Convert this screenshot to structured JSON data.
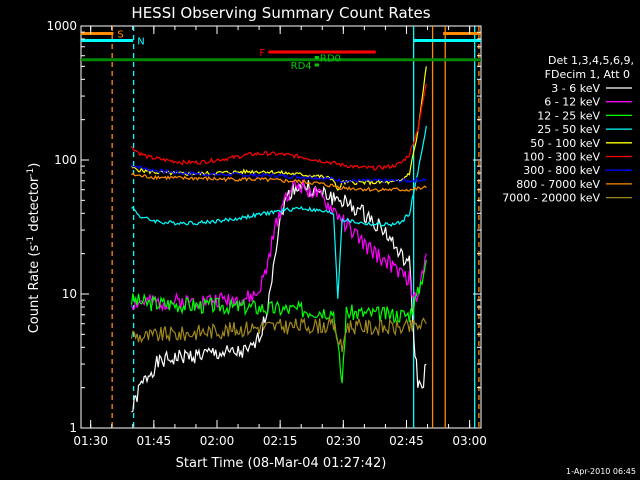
{
  "chart_data": {
    "type": "line",
    "title": "HESSI Observing Summary Count Rates",
    "xlabel": "Start Time (08-Mar-04 01:27:42)",
    "ylabel_main": "Count Rate (s",
    "ylabel_sup": "-1",
    "ylabel_tail": " detector",
    "ylabel_sup2": "-1",
    "ylabel_end": ")",
    "yscale": "log",
    "ylim": [
      1,
      1000
    ],
    "xlim_minutes": [
      0,
      95
    ],
    "x_ticks": [
      {
        "t": 2.3,
        "label": "01:30"
      },
      {
        "t": 17.3,
        "label": "01:45"
      },
      {
        "t": 32.3,
        "label": "02:00"
      },
      {
        "t": 47.3,
        "label": "02:15"
      },
      {
        "t": 62.3,
        "label": "02:30"
      },
      {
        "t": 77.3,
        "label": "02:45"
      },
      {
        "t": 92.3,
        "label": "03:00"
      }
    ],
    "y_ticks": [
      {
        "v": 1,
        "label": "1"
      },
      {
        "v": 10,
        "label": "10"
      },
      {
        "v": 100,
        "label": "100"
      },
      {
        "v": 1000,
        "label": "1000"
      }
    ],
    "legend_header": [
      "Det 1,3,4,5,6,9,",
      "FDecim 1, Att 0"
    ],
    "series": [
      {
        "name": "3 - 6 keV",
        "color": "#ffffff",
        "points": [
          [
            12,
            1.3
          ],
          [
            14,
            2
          ],
          [
            16,
            2.5
          ],
          [
            18,
            3
          ],
          [
            20,
            3.2
          ],
          [
            24,
            3.4
          ],
          [
            28,
            3.5
          ],
          [
            32,
            3.6
          ],
          [
            36,
            3.6
          ],
          [
            40,
            3.7
          ],
          [
            42,
            4.5
          ],
          [
            44,
            7
          ],
          [
            46,
            20
          ],
          [
            48,
            45
          ],
          [
            50,
            60
          ],
          [
            52,
            65
          ],
          [
            54,
            62
          ],
          [
            56,
            57
          ],
          [
            58,
            55
          ],
          [
            60,
            52
          ],
          [
            62,
            50
          ],
          [
            64,
            45
          ],
          [
            66,
            42
          ],
          [
            68,
            38
          ],
          [
            70,
            34
          ],
          [
            72,
            30
          ],
          [
            74,
            24
          ],
          [
            76,
            19
          ],
          [
            78,
            17
          ],
          [
            79,
            5
          ],
          [
            80,
            2.2
          ],
          [
            81,
            2
          ],
          [
            82,
            3
          ]
        ]
      },
      {
        "name": "6 - 12 keV",
        "color": "#ff00ff",
        "points": [
          [
            12,
            8.5
          ],
          [
            14,
            8.7
          ],
          [
            16,
            8.6
          ],
          [
            20,
            8.7
          ],
          [
            24,
            8.8
          ],
          [
            28,
            8.9
          ],
          [
            32,
            9
          ],
          [
            36,
            9.1
          ],
          [
            40,
            9.3
          ],
          [
            42,
            10
          ],
          [
            44,
            15
          ],
          [
            46,
            30
          ],
          [
            48,
            50
          ],
          [
            50,
            62
          ],
          [
            52,
            65
          ],
          [
            54,
            60
          ],
          [
            56,
            55
          ],
          [
            58,
            48
          ],
          [
            60,
            42
          ],
          [
            62,
            36
          ],
          [
            64,
            30
          ],
          [
            66,
            26
          ],
          [
            68,
            22
          ],
          [
            70,
            20
          ],
          [
            72,
            18
          ],
          [
            74,
            16
          ],
          [
            76,
            14
          ],
          [
            78,
            13
          ],
          [
            79,
            9
          ],
          [
            80,
            9.5
          ],
          [
            82,
            20
          ]
        ]
      },
      {
        "name": "12 - 25 keV",
        "color": "#00ff00",
        "points": [
          [
            12,
            9
          ],
          [
            14,
            8.8
          ],
          [
            16,
            8.5
          ],
          [
            20,
            8.5
          ],
          [
            24,
            8.3
          ],
          [
            28,
            8.2
          ],
          [
            32,
            8.2
          ],
          [
            36,
            8
          ],
          [
            40,
            8
          ],
          [
            44,
            7.8
          ],
          [
            48,
            7.7
          ],
          [
            52,
            7.6
          ],
          [
            56,
            7.5
          ],
          [
            60,
            7.4
          ],
          [
            62,
            2.2
          ],
          [
            63,
            7.3
          ],
          [
            66,
            7.2
          ],
          [
            70,
            7.1
          ],
          [
            74,
            7
          ],
          [
            78,
            7
          ],
          [
            80,
            10
          ],
          [
            82,
            18
          ]
        ]
      },
      {
        "name": "25 - 50 keV",
        "color": "#00ffff",
        "points": [
          [
            12,
            45
          ],
          [
            14,
            38
          ],
          [
            16,
            36
          ],
          [
            20,
            34
          ],
          [
            24,
            34
          ],
          [
            28,
            34
          ],
          [
            32,
            35
          ],
          [
            36,
            36
          ],
          [
            40,
            38
          ],
          [
            44,
            40
          ],
          [
            48,
            42
          ],
          [
            52,
            44
          ],
          [
            56,
            42
          ],
          [
            60,
            40
          ],
          [
            61,
            9.3
          ],
          [
            62,
            36
          ],
          [
            66,
            34
          ],
          [
            70,
            33
          ],
          [
            74,
            33
          ],
          [
            76,
            34
          ],
          [
            78,
            40
          ],
          [
            80,
            80
          ],
          [
            82,
            180
          ]
        ]
      },
      {
        "name": "50 - 100 keV",
        "color": "#ffff00",
        "points": [
          [
            12,
            88
          ],
          [
            14,
            84
          ],
          [
            16,
            82
          ],
          [
            20,
            80
          ],
          [
            24,
            79
          ],
          [
            28,
            79
          ],
          [
            32,
            80
          ],
          [
            36,
            81
          ],
          [
            40,
            82
          ],
          [
            44,
            82
          ],
          [
            48,
            80
          ],
          [
            52,
            78
          ],
          [
            56,
            76
          ],
          [
            60,
            72
          ],
          [
            61,
            58
          ],
          [
            62,
            68
          ],
          [
            66,
            68
          ],
          [
            70,
            68
          ],
          [
            74,
            68
          ],
          [
            76,
            70
          ],
          [
            78,
            80
          ],
          [
            80,
            160
          ],
          [
            82,
            500
          ]
        ]
      },
      {
        "name": "100 - 300 keV",
        "color": "#ff0000",
        "points": [
          [
            12,
            125
          ],
          [
            14,
            112
          ],
          [
            16,
            105
          ],
          [
            20,
            100
          ],
          [
            24,
            96
          ],
          [
            28,
            96
          ],
          [
            32,
            100
          ],
          [
            36,
            104
          ],
          [
            40,
            110
          ],
          [
            44,
            112
          ],
          [
            48,
            110
          ],
          [
            52,
            106
          ],
          [
            56,
            100
          ],
          [
            60,
            95
          ],
          [
            62,
            92
          ],
          [
            66,
            88
          ],
          [
            70,
            87
          ],
          [
            74,
            90
          ],
          [
            76,
            95
          ],
          [
            78,
            110
          ],
          [
            80,
            170
          ],
          [
            82,
            370
          ]
        ]
      },
      {
        "name": "300 - 800 keV",
        "color": "#0000ff",
        "points": [
          [
            12,
            92
          ],
          [
            14,
            88
          ],
          [
            16,
            85
          ],
          [
            20,
            82
          ],
          [
            24,
            80
          ],
          [
            28,
            79
          ],
          [
            32,
            78
          ],
          [
            36,
            78
          ],
          [
            40,
            77
          ],
          [
            44,
            77
          ],
          [
            48,
            76
          ],
          [
            52,
            75
          ],
          [
            56,
            74
          ],
          [
            60,
            72
          ],
          [
            62,
            70
          ],
          [
            66,
            70
          ],
          [
            70,
            70
          ],
          [
            74,
            70
          ],
          [
            76,
            70
          ],
          [
            78,
            70
          ],
          [
            80,
            71
          ],
          [
            82,
            72
          ]
        ]
      },
      {
        "name": "800 - 7000 keV",
        "color": "#ff8c00",
        "points": [
          [
            12,
            78
          ],
          [
            14,
            76
          ],
          [
            16,
            75
          ],
          [
            20,
            74
          ],
          [
            24,
            73
          ],
          [
            28,
            73
          ],
          [
            32,
            72
          ],
          [
            36,
            72
          ],
          [
            40,
            72
          ],
          [
            44,
            71
          ],
          [
            48,
            70
          ],
          [
            52,
            69
          ],
          [
            56,
            67
          ],
          [
            60,
            64
          ],
          [
            62,
            62
          ],
          [
            66,
            61
          ],
          [
            70,
            60
          ],
          [
            74,
            60
          ],
          [
            76,
            60
          ],
          [
            78,
            60
          ],
          [
            80,
            61
          ],
          [
            82,
            62
          ]
        ]
      },
      {
        "name": "7000 - 20000 keV",
        "color": "#a08820",
        "points": [
          [
            12,
            5
          ],
          [
            14,
            4.8
          ],
          [
            16,
            4.8
          ],
          [
            20,
            5
          ],
          [
            24,
            5
          ],
          [
            28,
            5.2
          ],
          [
            32,
            5.3
          ],
          [
            36,
            5.4
          ],
          [
            40,
            5.6
          ],
          [
            44,
            5.7
          ],
          [
            48,
            5.7
          ],
          [
            52,
            5.8
          ],
          [
            56,
            5.8
          ],
          [
            60,
            5.8
          ],
          [
            62,
            3.8
          ],
          [
            63,
            5.8
          ],
          [
            66,
            5.7
          ],
          [
            70,
            5.6
          ],
          [
            74,
            5.6
          ],
          [
            78,
            5.6
          ],
          [
            80,
            5.8
          ],
          [
            82,
            6
          ]
        ]
      }
    ],
    "flags": [
      {
        "label": "S",
        "color": "#ff8c00",
        "y": 880,
        "segments": [
          [
            0,
            7.7
          ],
          [
            86,
            95
          ]
        ]
      },
      {
        "label": "N",
        "color": "#00ffff",
        "y": 780,
        "segments": [
          [
            0,
            12.4
          ],
          [
            79,
            95
          ]
        ]
      },
      {
        "label": "F",
        "color": "#ff0000",
        "y": 640,
        "segments": [
          [
            44.5,
            70
          ]
        ]
      },
      {
        "label": "RD0",
        "color": "#00cc00",
        "y": 582,
        "segments": [
          [
            55.5,
            56.5
          ]
        ]
      },
      {
        "label": "RD4",
        "color": "#00cc00",
        "y": 512,
        "segments": [
          [
            55.5,
            56.5
          ]
        ]
      }
    ],
    "baseline": {
      "color": "#008800",
      "y": 560
    },
    "vlines": [
      {
        "t": 7.4,
        "color": "#ff8c00",
        "dashed": true
      },
      {
        "t": 12.5,
        "color": "#00ffff",
        "dashed": true
      },
      {
        "t": 79,
        "color": "#00ffff",
        "dashed": false
      },
      {
        "t": 83.5,
        "color": "#ff8c00",
        "dashed": false
      },
      {
        "t": 86.5,
        "color": "#ff8c00",
        "dashed": false
      },
      {
        "t": 93.5,
        "color": "#00ffff",
        "dashed": false
      },
      {
        "t": 94.5,
        "color": "#ff8c00",
        "dashed": true
      }
    ],
    "footer": "1-Apr-2010 06:45"
  }
}
